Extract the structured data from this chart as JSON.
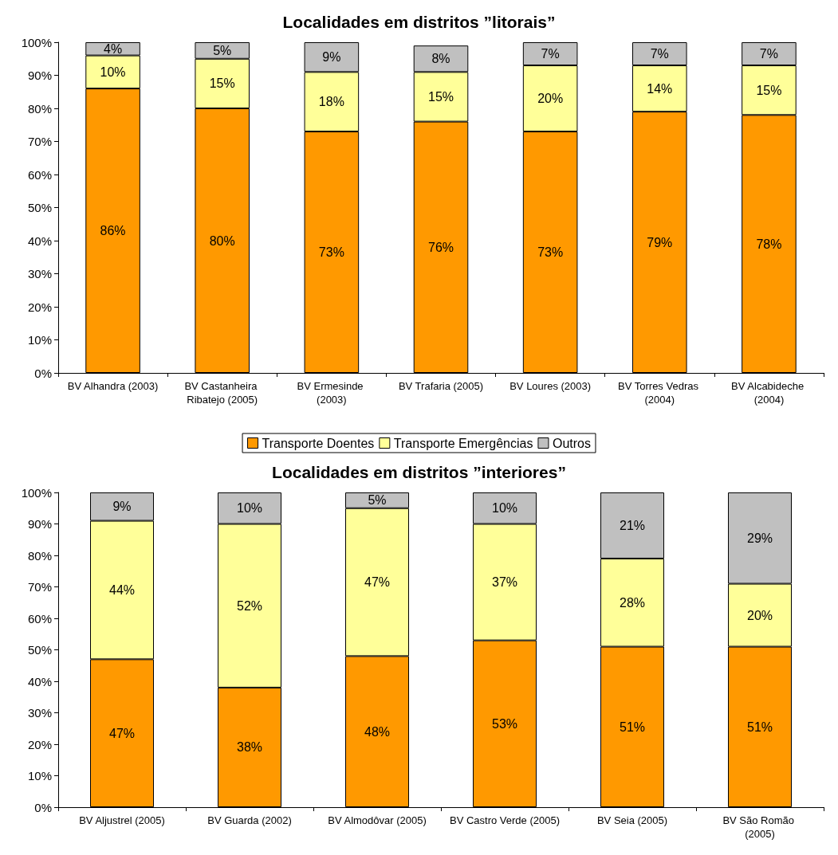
{
  "chart_data": [
    {
      "type": "bar",
      "title": "Localidades em distritos ”litorais”",
      "stacked": true,
      "legend": "bottom",
      "grid": false,
      "categories": [
        "BV Alhandra (2003)",
        "BV Castanheira Ribatejo (2005)",
        "BV Ermesinde (2003)",
        "BV Trafaria (2005)",
        "BV Loures (2003)",
        "BV Torres Vedras (2004)",
        "BV Alcabideche (2004)"
      ],
      "ylim": [
        0,
        100
      ],
      "yticks": [
        {
          "value": 0,
          "label": "0%"
        },
        {
          "value": 10,
          "label": "10%"
        },
        {
          "value": 20,
          "label": "20%"
        },
        {
          "value": 30,
          "label": "30%"
        },
        {
          "value": 40,
          "label": "40%"
        },
        {
          "value": 50,
          "label": "50%"
        },
        {
          "value": 60,
          "label": "60%"
        },
        {
          "value": 70,
          "label": "70%"
        },
        {
          "value": 80,
          "label": "80%"
        },
        {
          "value": 90,
          "label": "90%"
        },
        {
          "value": 100,
          "label": "100%"
        }
      ],
      "series": [
        {
          "name": "Transporte Doentes",
          "color": "#ff9900",
          "values": [
            86,
            80,
            73,
            76,
            73,
            79,
            78
          ],
          "value_labels": [
            "86%",
            "80%",
            "73%",
            "76%",
            "73%",
            "79%",
            "78%"
          ]
        },
        {
          "name": "Transporte Emergências",
          "color": "#ffff99",
          "values": [
            10,
            15,
            18,
            15,
            20,
            14,
            15
          ],
          "value_labels": [
            "10%",
            "15%",
            "18%",
            "15%",
            "20%",
            "14%",
            "15%"
          ]
        },
        {
          "name": "Outros",
          "color": "#c0c0c0",
          "values": [
            4,
            5,
            9,
            8,
            7,
            7,
            7
          ],
          "value_labels": [
            "4%",
            "5%",
            "9%",
            "8%",
            "7%",
            "7%",
            "7%"
          ]
        }
      ]
    },
    {
      "type": "bar",
      "title": "Localidades em distritos ”interiores”",
      "stacked": true,
      "grid": false,
      "categories": [
        "BV Aljustrel (2005)",
        "BV Guarda (2002)",
        "BV Almodôvar (2005)",
        "BV Castro Verde (2005)",
        "BV Seia (2005)",
        "BV São Romão (2005)"
      ],
      "ylim": [
        0,
        100
      ],
      "yticks": [
        {
          "value": 0,
          "label": "0%"
        },
        {
          "value": 10,
          "label": "10%"
        },
        {
          "value": 20,
          "label": "20%"
        },
        {
          "value": 30,
          "label": "30%"
        },
        {
          "value": 40,
          "label": "40%"
        },
        {
          "value": 50,
          "label": "50%"
        },
        {
          "value": 60,
          "label": "60%"
        },
        {
          "value": 70,
          "label": "70%"
        },
        {
          "value": 80,
          "label": "80%"
        },
        {
          "value": 90,
          "label": "90%"
        },
        {
          "value": 100,
          "label": "100%"
        }
      ],
      "series": [
        {
          "color": "#ff9900",
          "values": [
            47,
            38,
            48,
            53,
            51,
            51
          ],
          "value_labels": [
            "47%",
            "38%",
            "48%",
            "53%",
            "51%",
            "51%"
          ]
        },
        {
          "color": "#ffff99",
          "values": [
            44,
            52,
            47,
            37,
            28,
            20
          ],
          "value_labels": [
            "44%",
            "52%",
            "47%",
            "37%",
            "28%",
            "20%"
          ]
        },
        {
          "color": "#c0c0c0",
          "values": [
            9,
            10,
            5,
            10,
            21,
            29
          ],
          "value_labels": [
            "9%",
            "10%",
            "5%",
            "10%",
            "21%",
            "29%"
          ]
        }
      ]
    }
  ]
}
